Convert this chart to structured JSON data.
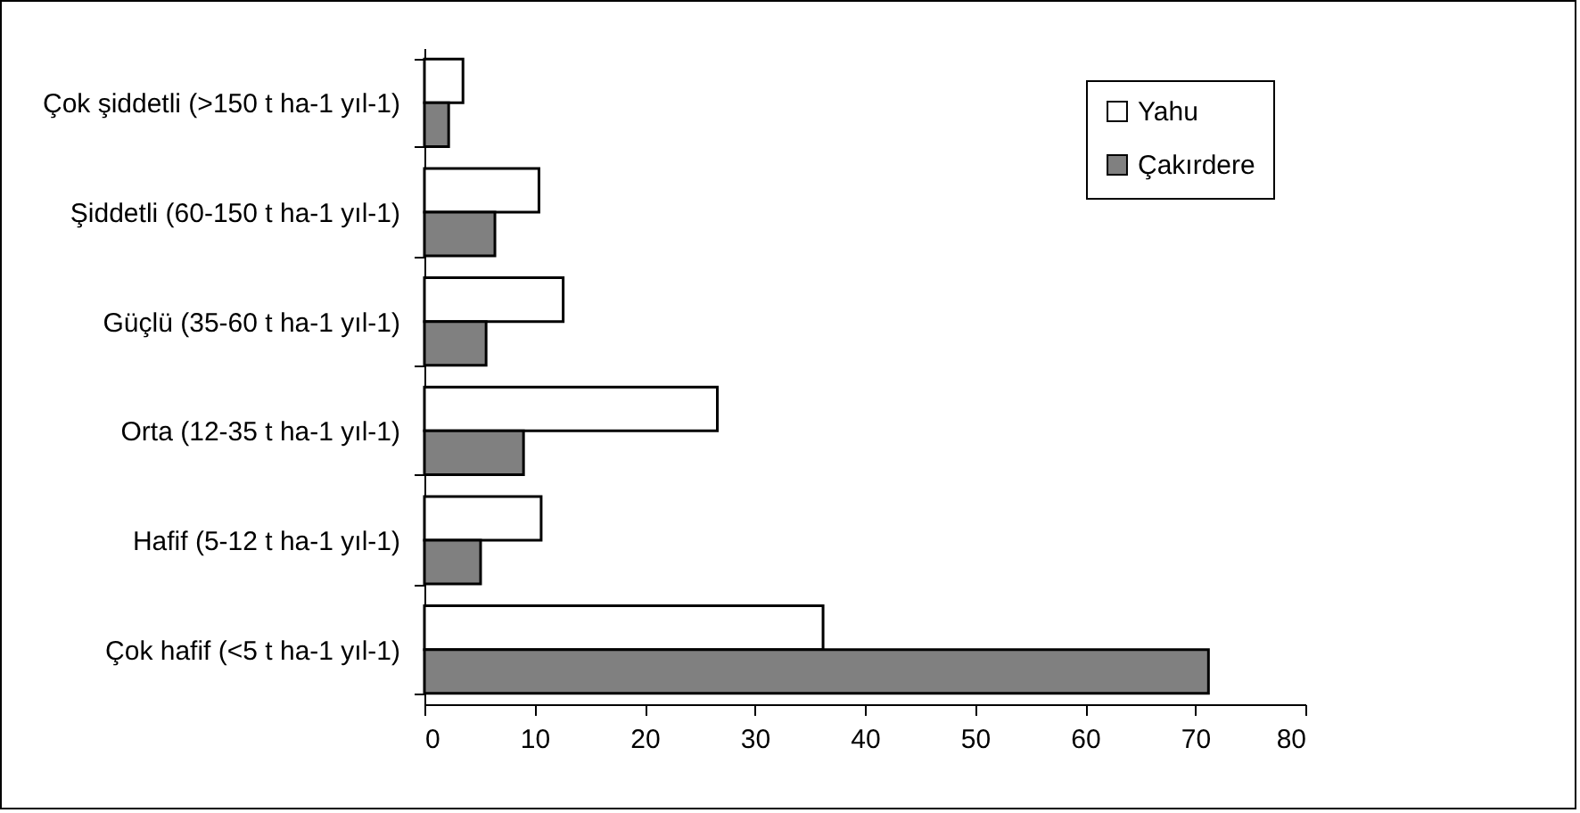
{
  "chart_data": {
    "type": "bar",
    "orientation": "horizontal",
    "categories": [
      "Çok şiddetli (>150 t ha-1 yıl-1)",
      "Şiddetli (60-150 t ha-1 yıl-1)",
      "Güçlü (35-60 t ha-1 yıl-1)",
      "Orta (12-35 t ha-1 yıl-1)",
      "Hafif (5-12 t ha-1 yıl-1)",
      "Çok hafif  (<5 t ha-1 yıl-1)"
    ],
    "series": [
      {
        "name": "Yahu",
        "color": "#ffffff",
        "values": [
          3.5,
          10.4,
          12.6,
          26.6,
          10.6,
          36.2
        ]
      },
      {
        "name": "Çakırdere",
        "color": "#808080",
        "values": [
          2.2,
          6.4,
          5.6,
          9.0,
          5.1,
          71.2
        ]
      }
    ],
    "xlim": [
      0,
      80
    ],
    "xticks": [
      0,
      10,
      20,
      30,
      40,
      50,
      60,
      70,
      80
    ],
    "grid": false,
    "legend": "top right"
  }
}
